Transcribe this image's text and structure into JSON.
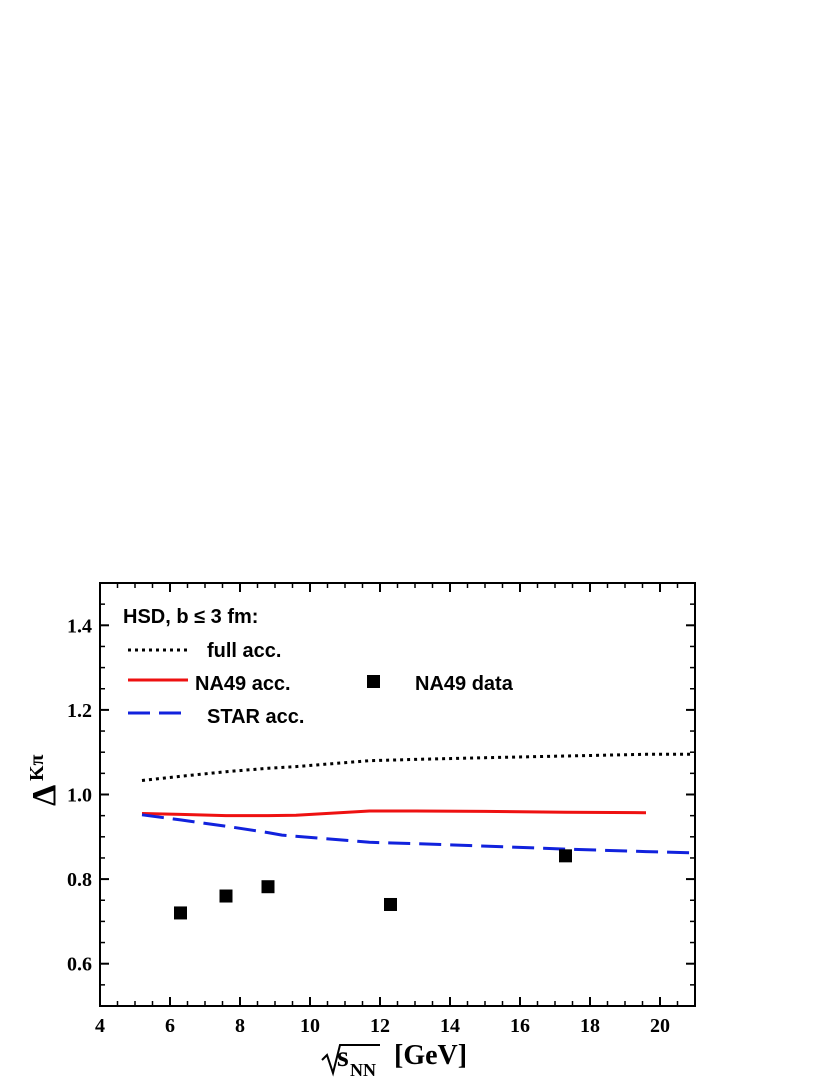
{
  "chart_data": {
    "type": "line",
    "title": "",
    "xlabel": {
      "radical": "s",
      "subscript": "NN",
      "unit": "[GeV]"
    },
    "ylabel": {
      "main": "Δ",
      "superscript": "Kπ"
    },
    "xlim": [
      4,
      21
    ],
    "ylim": [
      0.5,
      1.5
    ],
    "xticks": [
      4,
      6,
      8,
      10,
      12,
      14,
      16,
      18,
      20
    ],
    "yticks": [
      0.6,
      0.8,
      1.0,
      1.2,
      1.4
    ],
    "ytick_labels": [
      "0.6",
      "0.8",
      "1.0",
      "1.2",
      "1.4"
    ],
    "grid": false,
    "legend": {
      "title": "HSD, b ≤ 3 fm:",
      "placement": "top-left",
      "entries": [
        "full acc.",
        "NA49 acc.",
        "STAR acc.",
        "NA49 data"
      ]
    },
    "series": [
      {
        "name": "full acc.",
        "style": "dotted",
        "color": "#000000",
        "x": [
          5.2,
          6.3,
          7.6,
          8.8,
          9.6,
          11.7,
          13.0,
          15.0,
          17.3,
          19.6,
          21.0
        ],
        "y": [
          1.033,
          1.043,
          1.054,
          1.062,
          1.066,
          1.08,
          1.083,
          1.087,
          1.091,
          1.095,
          1.095
        ]
      },
      {
        "name": "NA49 acc.",
        "style": "solid",
        "color": "#ee1111",
        "x": [
          5.2,
          6.3,
          7.6,
          8.8,
          9.6,
          11.7,
          13.0,
          15.0,
          17.3,
          19.6
        ],
        "y": [
          0.955,
          0.953,
          0.95,
          0.95,
          0.951,
          0.961,
          0.961,
          0.96,
          0.958,
          0.957
        ]
      },
      {
        "name": "STAR acc.",
        "style": "dashed",
        "color": "#1122dd",
        "x": [
          5.2,
          6.3,
          7.6,
          8.8,
          9.2,
          11.7,
          13.0,
          15.0,
          17.3,
          19.6,
          21.0
        ],
        "y": [
          0.952,
          0.94,
          0.925,
          0.91,
          0.904,
          0.887,
          0.884,
          0.878,
          0.871,
          0.865,
          0.862
        ]
      },
      {
        "name": "NA49 data",
        "style": "markers",
        "marker": "square",
        "color": "#000000",
        "x": [
          6.3,
          7.6,
          8.8,
          12.3,
          17.3
        ],
        "y": [
          0.72,
          0.76,
          0.782,
          0.74,
          0.855
        ]
      }
    ]
  }
}
